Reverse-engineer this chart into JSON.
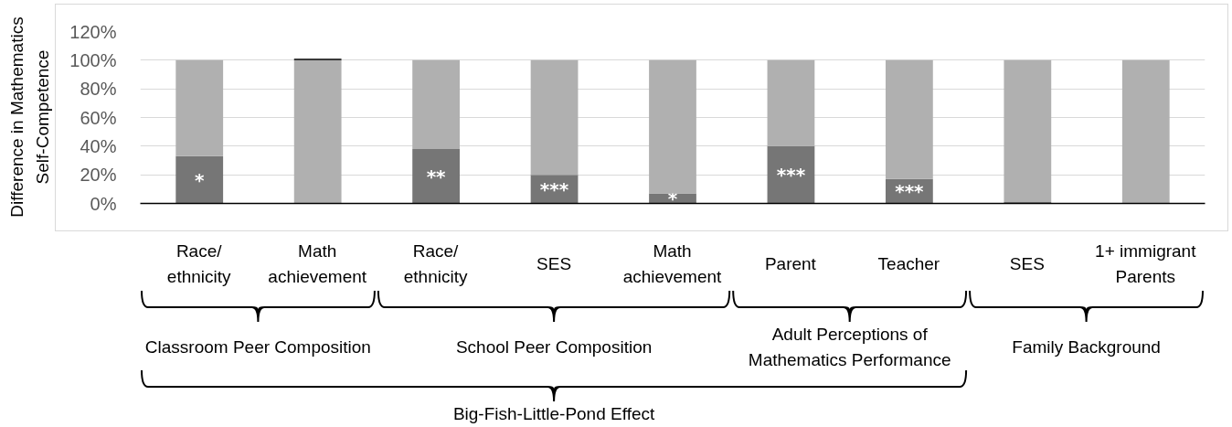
{
  "chart_data": {
    "type": "bar",
    "stacked": true,
    "categories": [
      "Race/ethnicity",
      "Math achievement",
      "Race/ethnicity",
      "SES",
      "Math achievement",
      "Parent",
      "Teacher",
      "SES",
      "1+ immigrant Parents"
    ],
    "ylabel": "Difference in Mathematics Self-Competence",
    "series": [
      {
        "color": "#767676",
        "values": [
          33,
          null,
          38,
          20,
          7,
          40,
          17,
          1,
          null
        ],
        "value_labels": [
          "*",
          null,
          "**",
          "***",
          "*",
          "***",
          "***",
          null,
          null
        ]
      },
      {
        "color": "#b0b0b0",
        "values": [
          67,
          100,
          62,
          80,
          93,
          60,
          83,
          99,
          100
        ]
      },
      {
        "color": "#000000",
        "values": [
          null,
          1,
          null,
          null,
          null,
          null,
          null,
          null,
          null
        ]
      }
    ],
    "ylim": [
      0,
      120
    ],
    "yticks": [
      {
        "value": 0,
        "label": "0%"
      },
      {
        "value": 20,
        "label": "20%"
      },
      {
        "value": 40,
        "label": "40%"
      },
      {
        "value": 60,
        "label": "60%"
      },
      {
        "value": 80,
        "label": "80%"
      },
      {
        "value": 100,
        "label": "100%"
      },
      {
        "value": 120,
        "label": "120%"
      }
    ],
    "grid": "y",
    "annotations": [
      "Classroom Peer Composition",
      "School Peer Composition",
      "Adult Perceptions of Mathematics Performance",
      "Family Background",
      "Big-Fish-Little-Pond Effect"
    ]
  }
}
